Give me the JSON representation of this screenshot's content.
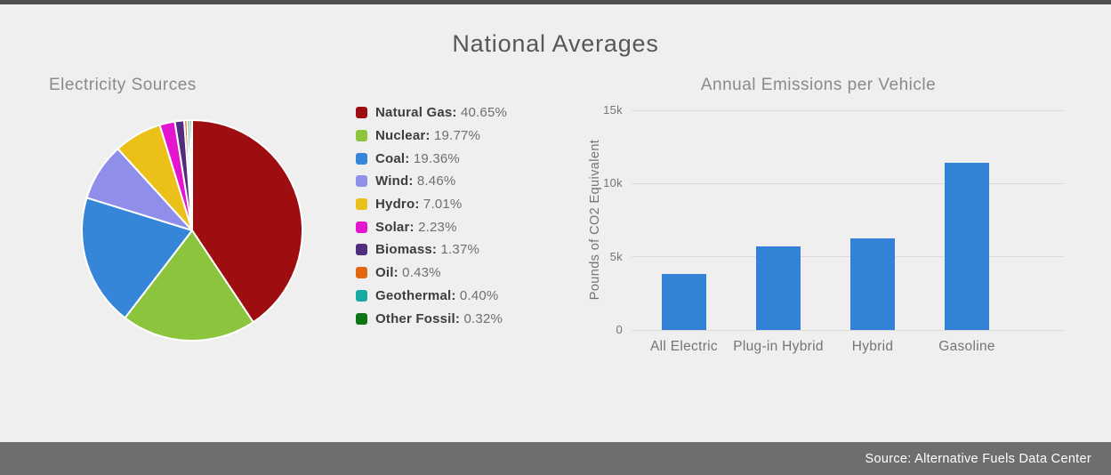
{
  "page": {
    "title": "National Averages"
  },
  "theme": {
    "background": "#EFEFEF",
    "top_bar": "#4F4F4F",
    "title_color": "#55575B",
    "section_title_color": "#8A8A8A",
    "axis_text_color": "#757575",
    "gridline_color": "#DBDBDB",
    "footer_background": "#6E6E6E",
    "footer_text": "#FFFFFF"
  },
  "footer": {
    "text": "Source: Alternative Fuels Data Center"
  },
  "chart_data": [
    {
      "type": "pie",
      "title": "Electricity Sources",
      "labels": [
        "Natural Gas",
        "Nuclear",
        "Coal",
        "Wind",
        "Hydro",
        "Solar",
        "Biomass",
        "Oil",
        "Geothermal",
        "Other Fossil"
      ],
      "values": [
        40.65,
        19.77,
        19.36,
        8.46,
        7.01,
        2.23,
        1.37,
        0.43,
        0.4,
        0.32
      ],
      "colors": [
        "#9E0D10",
        "#8CC43D",
        "#3585D8",
        "#8F8FE9",
        "#EBC119",
        "#E315CF",
        "#4F2D7F",
        "#E2670F",
        "#17A9A3",
        "#0F7514"
      ],
      "value_suffix": "%",
      "start_angle_deg": 0,
      "direction": "clockwise",
      "legend_position": "right"
    },
    {
      "type": "bar",
      "title": "Annual Emissions per Vehicle",
      "categories": [
        "All Electric",
        "Plug-in Hybrid",
        "Hybrid",
        "Gasoline"
      ],
      "values": [
        3800,
        5700,
        6250,
        11400
      ],
      "xlabel": "",
      "ylabel": "Pounds of CO2 Equivalent",
      "ylim": [
        0,
        15000
      ],
      "yticks": [
        {
          "value": 0,
          "label": "0"
        },
        {
          "value": 5000,
          "label": "5k"
        },
        {
          "value": 10000,
          "label": "10k"
        },
        {
          "value": 15000,
          "label": "15k"
        }
      ],
      "bar_color": "#3382D8",
      "grid": true,
      "legend_position": "none"
    }
  ]
}
